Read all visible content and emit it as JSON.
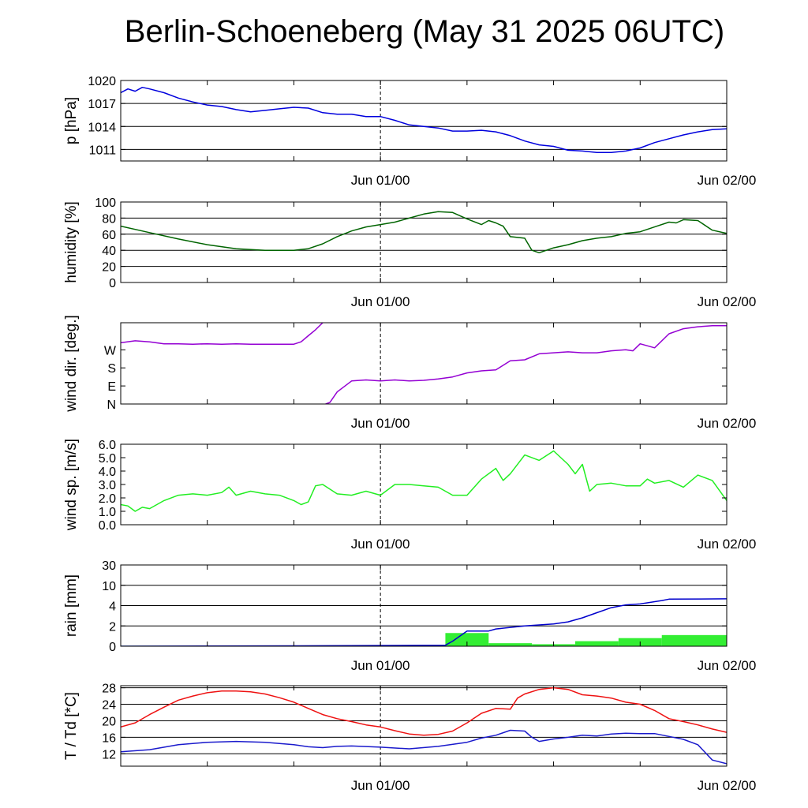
{
  "title": "Berlin-Schoeneberg (May 31 2025 06UTC)",
  "time_axis": {
    "hours": [
      0,
      42
    ],
    "marked_ticks": [
      {
        "hour": 18,
        "label": "Jun 01/00"
      },
      {
        "hour": 42,
        "label": "Jun 02/00"
      }
    ],
    "minor_tick_hours": [
      6,
      12,
      18,
      24,
      30,
      36
    ],
    "dashed_line_hour": 18
  },
  "colors": {
    "pressure": "#0000dd",
    "humidity": "#006400",
    "wind_dir": "#9400d3",
    "wind_speed": "#22ee22",
    "rain_total": "#0000cc",
    "rain_bars": "#33ee33",
    "temperature": "#ee1111",
    "dewpoint": "#1a1acc"
  },
  "chart_data": [
    {
      "type": "line",
      "id": "pressure",
      "ylabel": "p [hPa]",
      "ylim": [
        1009.5,
        1020
      ],
      "yticks": [
        1011,
        1014,
        1017,
        1020
      ],
      "ytick_labels": [
        "1011",
        "1014",
        "1017",
        "1020"
      ],
      "grid": true,
      "series": [
        {
          "color_key": "pressure",
          "x": [
            0,
            0.5,
            1,
            1.5,
            2,
            3,
            4,
            5,
            6,
            7,
            8,
            9,
            10,
            11,
            12,
            13,
            14,
            15,
            16,
            17,
            18,
            19,
            20,
            21,
            22,
            23,
            24,
            25,
            26,
            27,
            28,
            29,
            30,
            31,
            32,
            33,
            34,
            35,
            36,
            37,
            38,
            39,
            40,
            41,
            42
          ],
          "y": [
            1018.4,
            1018.9,
            1018.6,
            1019.1,
            1018.9,
            1018.4,
            1017.7,
            1017.2,
            1016.8,
            1016.6,
            1016.2,
            1015.9,
            1016.1,
            1016.3,
            1016.5,
            1016.4,
            1015.8,
            1015.6,
            1015.6,
            1015.3,
            1015.3,
            1014.8,
            1014.2,
            1014.0,
            1013.8,
            1013.4,
            1013.4,
            1013.5,
            1013.3,
            1012.8,
            1012.1,
            1011.6,
            1011.4,
            1010.9,
            1010.8,
            1010.6,
            1010.6,
            1010.8,
            1011.2,
            1011.9,
            1012.4,
            1012.9,
            1013.3,
            1013.6,
            1013.7
          ]
        }
      ]
    },
    {
      "type": "line",
      "id": "humidity",
      "ylabel": "humidity [%]",
      "ylim": [
        0,
        100
      ],
      "yticks": [
        0,
        20,
        40,
        60,
        80,
        100
      ],
      "ytick_labels": [
        "0",
        "20",
        "40",
        "60",
        "80",
        "100"
      ],
      "grid": true,
      "series": [
        {
          "color_key": "humidity",
          "x": [
            0,
            2,
            4,
            6,
            8,
            10,
            12,
            13,
            14,
            15,
            16,
            17,
            18,
            19,
            20,
            21,
            22,
            23,
            24,
            25,
            25.5,
            26,
            26.5,
            27,
            28,
            28.5,
            29,
            30,
            31,
            32,
            33,
            34,
            35,
            36,
            37,
            38,
            38.5,
            39,
            40,
            41,
            42
          ],
          "y": [
            70,
            62,
            54,
            47,
            42,
            40,
            40,
            42,
            48,
            57,
            64,
            69,
            72,
            75,
            80,
            85,
            88,
            87,
            79,
            72,
            77,
            74,
            70,
            57,
            55,
            40,
            37,
            43,
            47,
            52,
            55,
            57,
            61,
            63,
            69,
            75,
            74,
            78,
            77,
            65,
            61
          ]
        }
      ]
    },
    {
      "type": "line",
      "id": "wind_direction",
      "ylabel": "wind dir. [deg.]",
      "ylim": [
        0,
        405
      ],
      "yticks": [
        0,
        90,
        180,
        270
      ],
      "ytick_labels": [
        "N",
        "E",
        "S",
        "W"
      ],
      "grid": false,
      "series": [
        {
          "color_key": "wind_dir",
          "x": [
            0,
            1,
            2,
            3,
            4,
            5,
            6,
            7,
            8,
            9,
            10,
            11,
            12,
            12.5,
            13,
            13.5,
            14,
            14.2,
            14.5,
            15,
            16,
            17,
            18,
            19,
            20,
            21,
            22,
            23,
            24,
            25,
            26,
            27,
            28,
            29,
            30,
            31,
            32,
            33,
            34,
            35,
            35.5,
            36,
            37,
            38,
            39,
            40,
            41,
            42
          ],
          "y": [
            305,
            315,
            310,
            300,
            300,
            298,
            300,
            298,
            300,
            298,
            298,
            298,
            298,
            310,
            340,
            370,
            405,
            0,
            8,
            60,
            115,
            120,
            115,
            120,
            115,
            118,
            125,
            135,
            155,
            165,
            170,
            215,
            220,
            250,
            255,
            260,
            255,
            255,
            265,
            270,
            265,
            300,
            280,
            350,
            375,
            385,
            390,
            390
          ],
          "wrap_gap_after_hour": 14
        }
      ]
    },
    {
      "type": "line",
      "id": "wind_speed",
      "ylabel": "wind sp. [m/s]",
      "ylim": [
        0,
        6
      ],
      "yticks": [
        0,
        1,
        2,
        3,
        4,
        5,
        6
      ],
      "ytick_labels": [
        "0.0",
        "1.0",
        "2.0",
        "3.0",
        "4.0",
        "5.0",
        "6.0"
      ],
      "grid": false,
      "series": [
        {
          "color_key": "wind_speed",
          "x": [
            0,
            0.5,
            1,
            1.5,
            2,
            3,
            4,
            5,
            6,
            7,
            7.5,
            8,
            9,
            10,
            11,
            12,
            12.5,
            13,
            13.5,
            14,
            15,
            16,
            17,
            18,
            19,
            20,
            21,
            22,
            23,
            24,
            25,
            26,
            26.5,
            27,
            28,
            29,
            30,
            31,
            31.5,
            32,
            32.5,
            33,
            34,
            35,
            36,
            36.5,
            37,
            38,
            39,
            40,
            41,
            42
          ],
          "y": [
            1.5,
            1.4,
            1.0,
            1.3,
            1.2,
            1.8,
            2.2,
            2.3,
            2.2,
            2.4,
            2.8,
            2.2,
            2.5,
            2.3,
            2.2,
            1.8,
            1.5,
            1.7,
            2.9,
            3.0,
            2.3,
            2.2,
            2.5,
            2.2,
            3.0,
            3.0,
            2.9,
            2.8,
            2.2,
            2.2,
            3.4,
            4.2,
            3.3,
            3.8,
            5.2,
            4.8,
            5.5,
            4.5,
            3.8,
            4.5,
            2.5,
            3.0,
            3.1,
            2.9,
            2.9,
            3.4,
            3.1,
            3.3,
            2.8,
            3.7,
            3.3,
            1.8
          ]
        }
      ]
    },
    {
      "type": "bar",
      "id": "rain",
      "ylabel": "rain [mm]",
      "yscale": "custom",
      "ytick_values": [
        0,
        2,
        4,
        10,
        30
      ],
      "ytick_labels": [
        "0",
        "2",
        "4",
        "10",
        "30"
      ],
      "grid": true,
      "bars": {
        "color_key": "rain_bars",
        "start": [
          0,
          22.5,
          25.5,
          28.5,
          31.5,
          34.5,
          37.5
        ],
        "end": [
          22.5,
          25.5,
          28.5,
          31.5,
          34.5,
          37.5,
          42
        ],
        "values": [
          0.05,
          1.3,
          0.3,
          0.2,
          0.5,
          0.8,
          1.1
        ]
      },
      "series": [
        {
          "name": "",
          "color_key": "rain_total",
          "x": [
            0,
            14,
            22.5,
            23,
            24,
            25.5,
            26,
            28,
            30,
            31,
            32,
            33,
            34,
            35,
            36,
            37.5,
            38,
            42
          ],
          "y": [
            0,
            0.05,
            0.1,
            0.5,
            1.5,
            1.5,
            1.7,
            2.0,
            2.2,
            2.4,
            2.8,
            3.3,
            3.8,
            4.2,
            4.5,
            5.5,
            5.9,
            6.0
          ]
        }
      ]
    },
    {
      "type": "line",
      "id": "temperature",
      "ylabel": "T / Td [*C]",
      "ylim": [
        9,
        28.5
      ],
      "yticks": [
        12,
        16,
        20,
        24,
        28
      ],
      "ytick_labels": [
        "12",
        "16",
        "20",
        "24",
        "28"
      ],
      "grid": true,
      "series": [
        {
          "color_key": "temperature",
          "x": [
            0,
            1,
            2,
            3,
            4,
            5,
            6,
            7,
            8,
            9,
            10,
            11,
            12,
            13,
            14,
            15,
            16,
            17,
            18,
            19,
            20,
            21,
            22,
            23,
            24,
            25,
            26,
            27,
            27.5,
            28,
            29,
            30,
            31,
            32,
            33,
            34,
            35,
            36,
            37,
            38,
            39,
            40,
            41,
            42
          ],
          "y": [
            18.5,
            19.5,
            21.5,
            23.3,
            25.0,
            26.0,
            26.8,
            27.2,
            27.2,
            27.0,
            26.5,
            25.6,
            24.5,
            23.0,
            21.5,
            20.5,
            19.8,
            19.0,
            18.5,
            17.6,
            16.8,
            16.5,
            16.7,
            17.5,
            19.5,
            21.8,
            23.0,
            22.8,
            25.5,
            26.5,
            27.6,
            28.0,
            27.6,
            26.3,
            26.0,
            25.5,
            24.5,
            24.0,
            22.5,
            20.5,
            19.8,
            19.0,
            18.0,
            17.2
          ]
        },
        {
          "color_key": "dewpoint",
          "x": [
            0,
            2,
            4,
            6,
            8,
            10,
            12,
            13,
            14,
            15,
            16,
            18,
            20,
            22,
            24,
            25,
            26,
            27,
            28,
            28.5,
            29,
            30,
            31,
            32,
            33,
            34,
            35,
            36,
            37,
            38,
            39,
            40,
            41,
            42
          ],
          "y": [
            12.5,
            13.0,
            14.2,
            14.8,
            15.0,
            14.8,
            14.2,
            13.7,
            13.5,
            13.8,
            13.9,
            13.6,
            13.2,
            13.8,
            14.8,
            15.8,
            16.5,
            17.7,
            17.5,
            16.0,
            15.0,
            15.6,
            16.0,
            16.5,
            16.3,
            16.8,
            17.0,
            16.9,
            16.9,
            16.2,
            15.5,
            14.2,
            10.5,
            9.6
          ]
        }
      ]
    }
  ]
}
